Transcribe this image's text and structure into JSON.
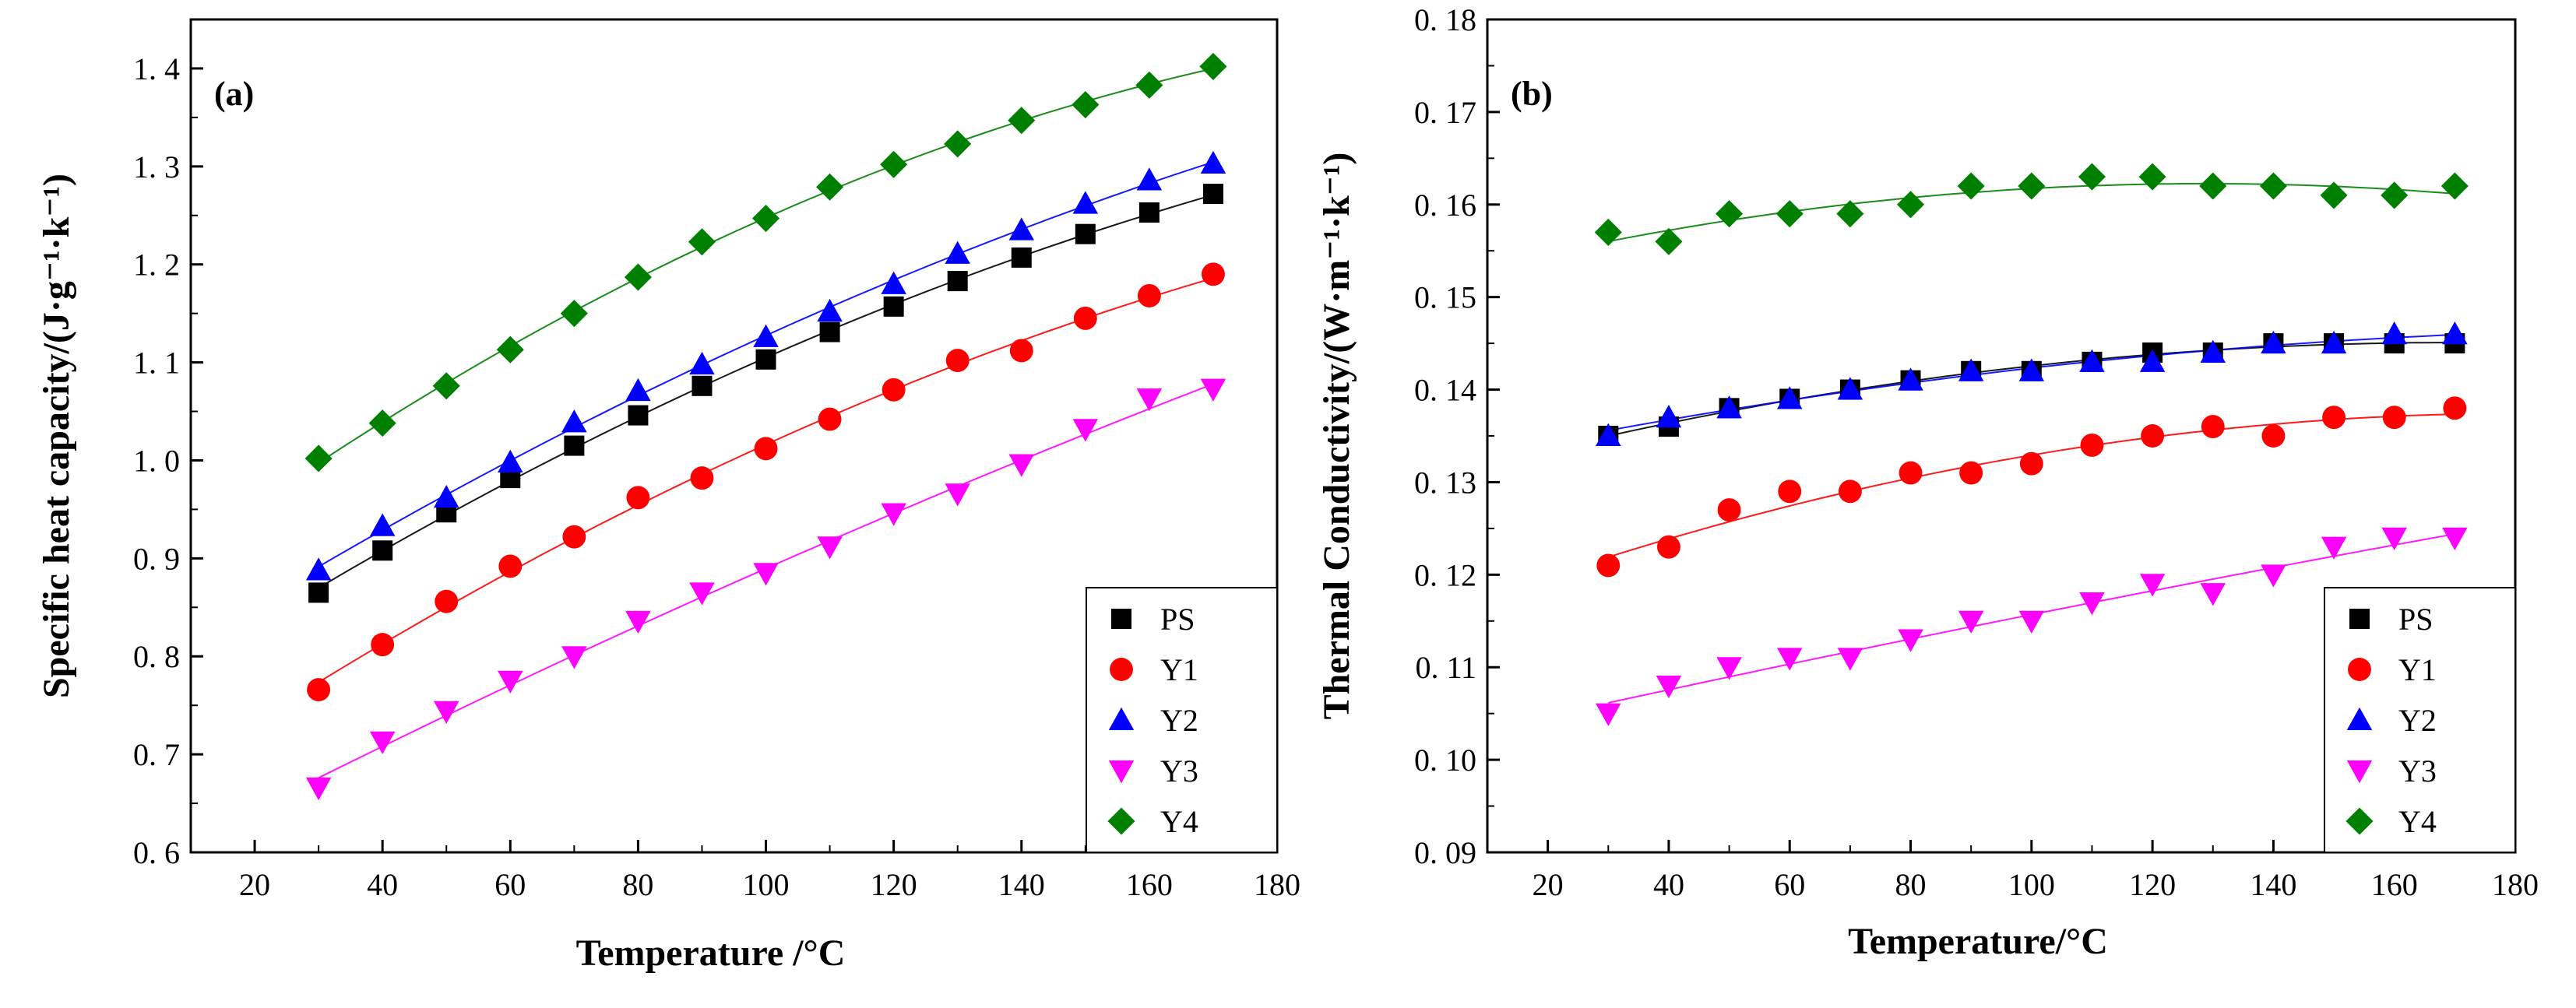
{
  "chart_data": [
    {
      "type": "scatter",
      "panel_label": "(a)",
      "xlabel": "Temperature /°C",
      "ylabel": "Specific heat capacity/(J·g⁻¹·k⁻¹)",
      "xlim": [
        10,
        180
      ],
      "ylim": [
        0.6,
        1.45
      ],
      "xticks": [
        20,
        40,
        60,
        80,
        100,
        120,
        140,
        160,
        180
      ],
      "yticks": [
        0.6,
        0.7,
        0.8,
        0.9,
        1.0,
        1.1,
        1.2,
        1.3,
        1.4
      ],
      "ytick_labels": [
        "0. 6",
        "0. 7",
        "0. 8",
        "0. 9",
        "1. 0",
        "1. 1",
        "1. 2",
        "1. 3",
        "1. 4"
      ],
      "x": [
        30,
        40,
        50,
        60,
        70,
        80,
        90,
        100,
        110,
        120,
        130,
        140,
        150,
        160,
        170
      ],
      "fit_lines": true,
      "legend_position": "bottom-right",
      "series": [
        {
          "name": "PS",
          "marker": "square",
          "color": "#000000",
          "values": [
            0.865,
            0.908,
            0.947,
            0.982,
            1.015,
            1.046,
            1.076,
            1.103,
            1.131,
            1.157,
            1.183,
            1.207,
            1.231,
            1.253,
            1.272
          ]
        },
        {
          "name": "Y1",
          "marker": "circle",
          "color": "#ff0000",
          "values": [
            0.766,
            0.812,
            0.856,
            0.892,
            0.922,
            0.962,
            0.982,
            1.012,
            1.042,
            1.072,
            1.102,
            1.112,
            1.145,
            1.168,
            1.19
          ]
        },
        {
          "name": "Y2",
          "marker": "triangle-up",
          "color": "#0000ff",
          "values": [
            0.888,
            0.933,
            0.962,
            0.998,
            1.039,
            1.071,
            1.098,
            1.126,
            1.152,
            1.18,
            1.211,
            1.235,
            1.262,
            1.286,
            1.303
          ]
        },
        {
          "name": "Y3",
          "marker": "triangle-down",
          "color": "#ff00ff",
          "values": [
            0.666,
            0.713,
            0.744,
            0.775,
            0.8,
            0.836,
            0.865,
            0.885,
            0.912,
            0.946,
            0.966,
            0.996,
            1.032,
            1.063,
            1.073
          ]
        },
        {
          "name": "Y4",
          "marker": "diamond",
          "color": "#008000",
          "values": [
            1.002,
            1.038,
            1.076,
            1.113,
            1.15,
            1.187,
            1.223,
            1.247,
            1.279,
            1.302,
            1.323,
            1.347,
            1.363,
            1.383,
            1.402
          ]
        }
      ]
    },
    {
      "type": "scatter",
      "panel_label": "(b)",
      "xlabel": "Temperature/°C",
      "ylabel": "Thermal Conductivity/(W·m⁻¹·k⁻¹)",
      "xlim": [
        10,
        180
      ],
      "ylim": [
        0.09,
        0.18
      ],
      "xticks": [
        20,
        40,
        60,
        80,
        100,
        120,
        140,
        160,
        180
      ],
      "yticks": [
        0.09,
        0.1,
        0.11,
        0.12,
        0.13,
        0.14,
        0.15,
        0.16,
        0.17,
        0.18
      ],
      "ytick_labels": [
        "0. 09",
        "0. 10",
        "0. 11",
        "0. 12",
        "0. 13",
        "0. 14",
        "0. 15",
        "0. 16",
        "0. 17",
        "0. 18"
      ],
      "x": [
        30,
        40,
        50,
        60,
        70,
        80,
        90,
        100,
        110,
        120,
        130,
        140,
        150,
        160,
        170
      ],
      "fit_lines": true,
      "legend_position": "bottom-right",
      "series": [
        {
          "name": "PS",
          "marker": "square",
          "color": "#000000",
          "values": [
            0.135,
            0.136,
            0.138,
            0.139,
            0.14,
            0.141,
            0.142,
            0.142,
            0.143,
            0.144,
            0.144,
            0.145,
            0.145,
            0.145,
            0.145
          ]
        },
        {
          "name": "Y1",
          "marker": "circle",
          "color": "#ff0000",
          "values": [
            0.121,
            0.123,
            0.127,
            0.129,
            0.129,
            0.131,
            0.131,
            0.132,
            0.134,
            0.135,
            0.136,
            0.135,
            0.137,
            0.137,
            0.138
          ]
        },
        {
          "name": "Y2",
          "marker": "triangle-up",
          "color": "#0000ff",
          "values": [
            0.135,
            0.137,
            0.138,
            0.139,
            0.14,
            0.141,
            0.142,
            0.142,
            0.143,
            0.143,
            0.144,
            0.145,
            0.145,
            0.146,
            0.146
          ]
        },
        {
          "name": "Y3",
          "marker": "triangle-down",
          "color": "#ff00ff",
          "values": [
            0.105,
            0.108,
            0.11,
            0.111,
            0.111,
            0.113,
            0.115,
            0.115,
            0.117,
            0.119,
            0.118,
            0.12,
            0.123,
            0.124,
            0.124
          ]
        },
        {
          "name": "Y4",
          "marker": "diamond",
          "color": "#008000",
          "values": [
            0.157,
            0.156,
            0.159,
            0.159,
            0.159,
            0.16,
            0.162,
            0.162,
            0.163,
            0.163,
            0.162,
            0.162,
            0.161,
            0.161,
            0.162
          ]
        }
      ]
    }
  ]
}
